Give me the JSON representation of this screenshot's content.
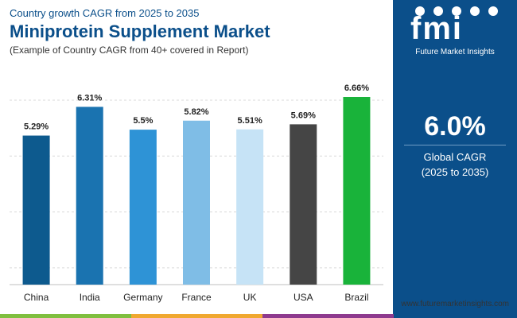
{
  "header": {
    "eyebrow": "Country growth CAGR from 2025 to 2035",
    "title": "Miniprotein Supplement Market",
    "subtitle": "(Example of Country CAGR from 40+ covered in Report)"
  },
  "logo": {
    "letters": "fmi",
    "tagline": "Future Market Insights"
  },
  "kpi": {
    "value": "6.0%",
    "label_line1": "Global CAGR",
    "label_line2": "(2025 to 2035)"
  },
  "footer": {
    "url": "www.futuremarketinsights.com"
  },
  "colors": {
    "brand_blue": "#0b4f8a",
    "grid": "#d9d9d9",
    "strip": [
      "#7fbf3f",
      "#f0a830",
      "#8e3a8e",
      "#0b4f8a"
    ]
  },
  "chart_data": {
    "type": "bar",
    "categories": [
      "China",
      "India",
      "Germany",
      "France",
      "UK",
      "USA",
      "Brazil"
    ],
    "values": [
      5.29,
      6.31,
      5.5,
      5.82,
      5.51,
      5.69,
      6.66
    ],
    "value_labels": [
      "5.29%",
      "6.31%",
      "5.5%",
      "5.82%",
      "5.51%",
      "5.69%",
      "6.66%"
    ],
    "bar_colors": [
      "#0d5a8e",
      "#1a73b0",
      "#2e93d6",
      "#7fbde6",
      "#c6e3f6",
      "#454545",
      "#19b33a"
    ],
    "ylim": [
      0,
      6.66
    ],
    "grid": true
  }
}
